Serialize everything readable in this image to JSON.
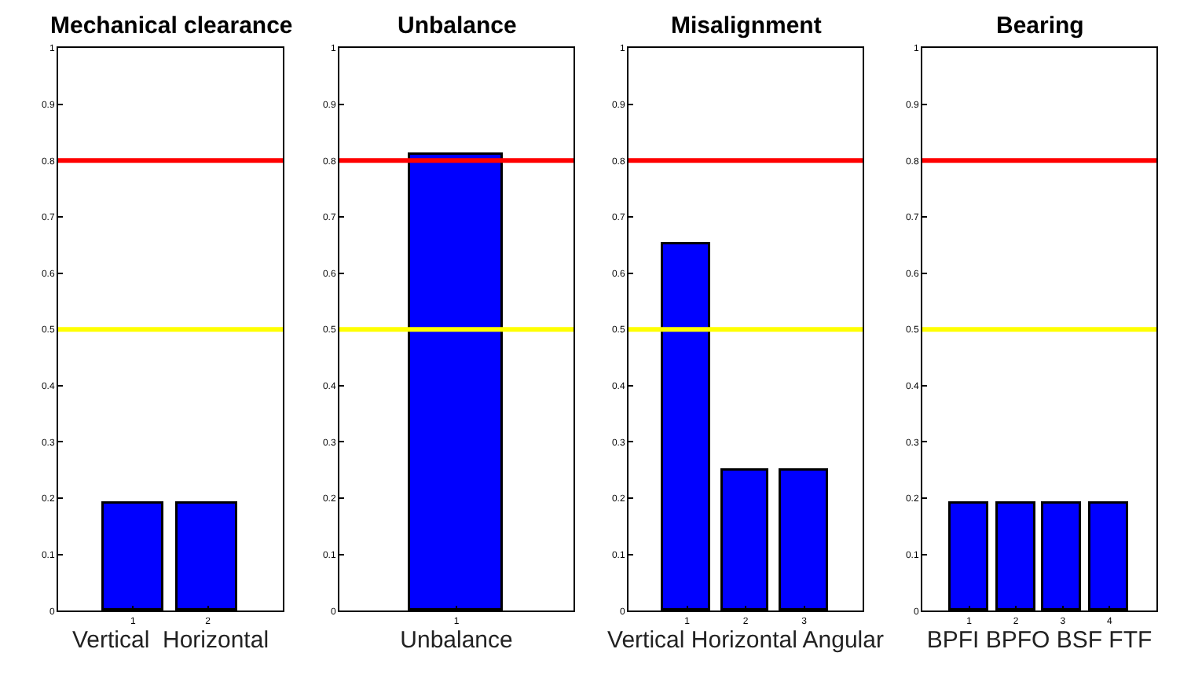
{
  "chart_data": [
    {
      "type": "bar",
      "title": "Mechanical clearance",
      "xlabel": "Vertical  Horizontal",
      "categories": [
        "1",
        "2"
      ],
      "values": [
        0.19,
        0.19
      ],
      "color": "#0000ff",
      "ylim": [
        0,
        1
      ],
      "yticks": [
        0,
        0.1,
        0.2,
        0.3,
        0.4,
        0.5,
        0.6,
        0.7,
        0.8,
        0.9,
        1
      ],
      "ref_lines": [
        {
          "axis": "y",
          "value": 0.8,
          "color": "#ff0000"
        },
        {
          "axis": "y",
          "value": 0.5,
          "color": "#ffff00"
        }
      ]
    },
    {
      "type": "bar",
      "title": "Unbalance",
      "xlabel": "Unbalance",
      "categories": [
        "1"
      ],
      "values": [
        0.81
      ],
      "color": "#0000ff",
      "ylim": [
        0,
        1
      ],
      "yticks": [
        0,
        0.1,
        0.2,
        0.3,
        0.4,
        0.5,
        0.6,
        0.7,
        0.8,
        0.9,
        1
      ],
      "ref_lines": [
        {
          "axis": "y",
          "value": 0.8,
          "color": "#ff0000"
        },
        {
          "axis": "y",
          "value": 0.5,
          "color": "#ffff00"
        }
      ]
    },
    {
      "type": "bar",
      "title": "Misalignment",
      "xlabel": "Vertical Horizontal Angular",
      "categories": [
        "1",
        "2",
        "3"
      ],
      "values": [
        0.65,
        0.25,
        0.25
      ],
      "color": "#0000ff",
      "ylim": [
        0,
        1
      ],
      "yticks": [
        0,
        0.1,
        0.2,
        0.3,
        0.4,
        0.5,
        0.6,
        0.7,
        0.8,
        0.9,
        1
      ],
      "ref_lines": [
        {
          "axis": "y",
          "value": 0.8,
          "color": "#ff0000"
        },
        {
          "axis": "y",
          "value": 0.5,
          "color": "#ffff00"
        }
      ]
    },
    {
      "type": "bar",
      "title": "Bearing",
      "xlabel": "BPFI BPFO BSF FTF",
      "categories": [
        "1",
        "2",
        "3",
        "4"
      ],
      "values": [
        0.19,
        0.19,
        0.19,
        0.19
      ],
      "color": "#0000ff",
      "ylim": [
        0,
        1
      ],
      "yticks": [
        0,
        0.1,
        0.2,
        0.3,
        0.4,
        0.5,
        0.6,
        0.7,
        0.8,
        0.9,
        1
      ],
      "ref_lines": [
        {
          "axis": "y",
          "value": 0.8,
          "color": "#ff0000"
        },
        {
          "axis": "y",
          "value": 0.5,
          "color": "#ffff00"
        }
      ]
    }
  ]
}
